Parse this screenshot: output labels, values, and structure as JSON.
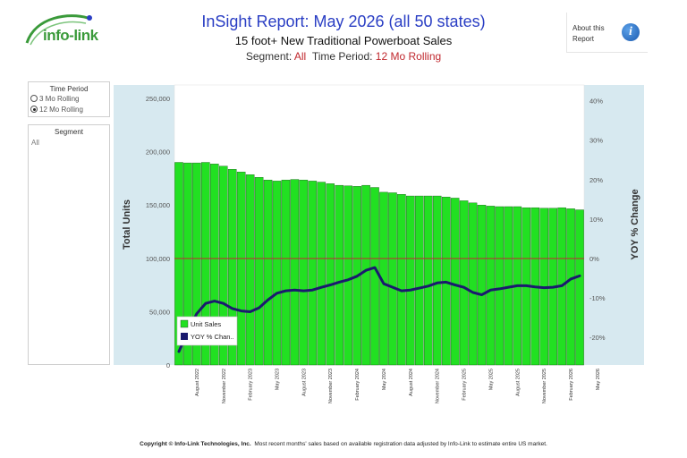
{
  "header": {
    "logo_text": "info-link",
    "title": "InSight Report: May 2026 (all 50 states)",
    "subtitle": "15 foot+ New Traditional Powerboat Sales",
    "segment_label": "Segment:",
    "segment_value": "All",
    "period_label": "Time Period:",
    "period_value": "12 Mo Rolling",
    "about_label": "About this Report"
  },
  "filters": {
    "time_period_title": "Time Period",
    "options": [
      "3 Mo Rolling",
      "12 Mo Rolling"
    ],
    "selected": "12 Mo Rolling",
    "segment_title": "Segment",
    "segment_value": "All"
  },
  "footer": {
    "copyright": "Copyright © Info-Link Technologies, Inc.",
    "note": "Most recent months' sales based on available registration data adjusted by Info-Link to estimate entire US market."
  },
  "colors": {
    "bar": "#22e022",
    "line": "#1a1a6e",
    "zero_line": "#c0282e",
    "side_band": "#d7e9f0",
    "title": "#2a3ec4"
  },
  "chart_data": {
    "type": "bar",
    "ylabel": "Total Units",
    "y2label": "YOY % Change",
    "ylim": [
      0,
      250000
    ],
    "yticks": [
      "250,000",
      "200,000",
      "150,000",
      "100,000",
      "50,000",
      "0"
    ],
    "y2lim": [
      -27,
      44
    ],
    "y2ticks": [
      "40%",
      "30%",
      "20%",
      "10%",
      "0%",
      "-10%",
      "-20%"
    ],
    "xticks": [
      "August 2022",
      "November 2022",
      "February 2023",
      "May 2023",
      "August 2023",
      "November 2023",
      "February 2024",
      "May 2024",
      "August 2024",
      "November 2024",
      "February 2025",
      "May 2025",
      "August 2025",
      "November 2025",
      "February 2026",
      "May 2026"
    ],
    "first_month": "June 2022",
    "legend": [
      "Unit Sales",
      "YOY % Chan.."
    ],
    "legend_position": "bottom-left",
    "series": [
      {
        "name": "Unit Sales",
        "type": "bar",
        "values": [
          190000,
          189500,
          189500,
          190000,
          188500,
          186500,
          183500,
          181000,
          178500,
          176000,
          173500,
          172500,
          173500,
          174000,
          173500,
          172500,
          171500,
          170000,
          168500,
          168000,
          167500,
          168500,
          166500,
          162000,
          161500,
          160000,
          158500,
          158500,
          158500,
          158500,
          157500,
          156500,
          154000,
          152000,
          150000,
          149000,
          148500,
          148500,
          148500,
          147500,
          147500,
          147000,
          147000,
          147500,
          146500,
          145500
        ]
      },
      {
        "name": "YOY % Chan..",
        "type": "line",
        "axis": "secondary",
        "values": [
          -23.6,
          -18.5,
          -14.0,
          -11.4,
          -10.8,
          -11.4,
          -12.7,
          -13.3,
          -13.5,
          -12.5,
          -10.5,
          -8.8,
          -8.2,
          -8.0,
          -8.2,
          -8.0,
          -7.3,
          -6.7,
          -6.0,
          -5.4,
          -4.5,
          -3.0,
          -2.3,
          -6.4,
          -7.3,
          -8.2,
          -8.0,
          -7.5,
          -7.0,
          -6.2,
          -6.0,
          -6.7,
          -7.3,
          -8.6,
          -9.2,
          -8.0,
          -7.7,
          -7.3,
          -6.9,
          -6.9,
          -7.2,
          -7.4,
          -7.3,
          -6.9,
          -5.2,
          -4.4
        ]
      }
    ]
  }
}
